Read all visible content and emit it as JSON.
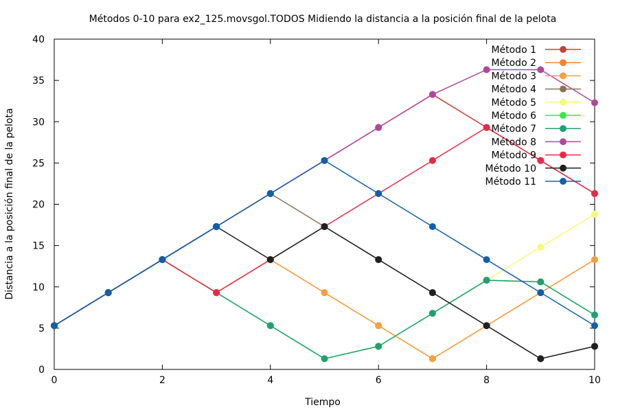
{
  "chart_data": {
    "type": "line",
    "title": "Métodos 0-10 para ex2_125.movsgol.TODOS Midiendo la distancia a la posición final de la pelota",
    "xlabel": "Tiempo",
    "ylabel": "Distancia a la posición final de la pelota",
    "xlim": [
      0,
      10
    ],
    "ylim": [
      0,
      40
    ],
    "xticks": [
      0,
      2,
      4,
      6,
      8,
      10
    ],
    "yticks": [
      0,
      5,
      10,
      15,
      20,
      25,
      30,
      35,
      40
    ],
    "grid": false,
    "legend_position": "top-right",
    "x": [
      0,
      1,
      2,
      3,
      4,
      5,
      6,
      7,
      8,
      9,
      10
    ],
    "series": [
      {
        "name": "Método 1",
        "color": "#c8403c",
        "values": [
          5.3,
          9.3,
          13.3,
          17.3,
          21.3,
          25.3,
          29.3,
          33.3,
          29.3,
          25.3,
          21.3
        ]
      },
      {
        "name": "Método 2",
        "color": "#f5842c",
        "values": [
          5.3,
          9.3,
          13.3,
          9.3,
          13.3,
          9.3,
          5.3,
          1.3,
          5.3,
          9.3,
          13.3
        ]
      },
      {
        "name": "Método 3",
        "color": "#f5a040",
        "values": [
          5.3,
          9.3,
          13.3,
          9.3,
          13.3,
          9.3,
          5.3,
          1.3,
          5.3,
          9.3,
          13.3
        ]
      },
      {
        "name": "Método 4",
        "color": "#8b7355",
        "values": [
          5.3,
          9.3,
          13.3,
          17.3,
          21.3,
          17.3,
          13.3,
          9.3,
          5.3,
          1.3,
          2.8
        ]
      },
      {
        "name": "Método 5",
        "color": "#f8f878",
        "values": [
          5.3,
          9.3,
          13.3,
          9.3,
          5.3,
          1.3,
          2.8,
          6.8,
          10.8,
          14.8,
          18.8
        ]
      },
      {
        "name": "Método 6",
        "color": "#30f030",
        "values": [
          5.3,
          9.3,
          13.3,
          9.3,
          5.3,
          1.3,
          2.8,
          6.8,
          10.8,
          10.6,
          6.6
        ]
      },
      {
        "name": "Método 7",
        "color": "#20a070",
        "values": [
          5.3,
          9.3,
          13.3,
          9.3,
          5.3,
          1.3,
          2.8,
          6.8,
          10.8,
          10.6,
          6.6
        ]
      },
      {
        "name": "Método 8",
        "color": "#b0489a",
        "values": [
          5.3,
          9.3,
          13.3,
          17.3,
          21.3,
          25.3,
          29.3,
          33.3,
          36.3,
          36.3,
          32.3
        ]
      },
      {
        "name": "Método 9",
        "color": "#e82a46",
        "values": [
          5.3,
          9.3,
          13.3,
          9.3,
          13.3,
          17.3,
          21.3,
          25.3,
          29.3,
          25.3,
          21.3
        ]
      },
      {
        "name": "Método 10",
        "color": "#202020",
        "values": [
          5.3,
          9.3,
          13.3,
          17.3,
          13.3,
          17.3,
          13.3,
          9.3,
          5.3,
          1.3,
          2.8
        ]
      },
      {
        "name": "Método 11",
        "color": "#1060a8",
        "values": [
          5.3,
          9.3,
          13.3,
          17.3,
          21.3,
          25.3,
          21.3,
          17.3,
          13.3,
          9.3,
          5.3
        ]
      }
    ]
  }
}
